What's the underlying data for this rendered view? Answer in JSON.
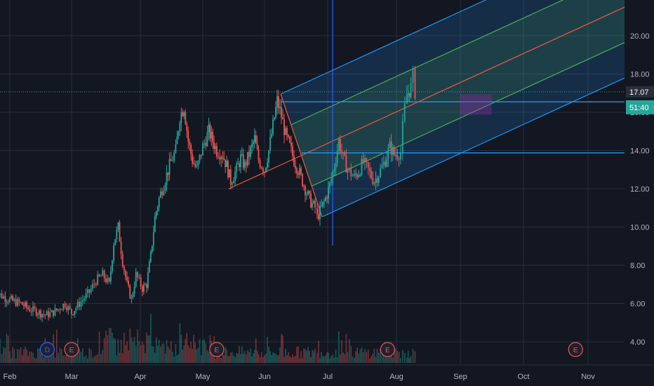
{
  "chart_data": {
    "type": "candlestick",
    "x_axis_labels": [
      "Feb",
      "Mar",
      "Apr",
      "May",
      "Jun",
      "Jul",
      "Aug",
      "Sep",
      "Oct",
      "Nov"
    ],
    "y_axis_labels": [
      "4.00",
      "6.00",
      "8.00",
      "10.00",
      "12.00",
      "14.00",
      "16.00",
      "18.00",
      "20.00"
    ],
    "ylim": [
      2.8,
      22.5
    ],
    "y_ticks": [
      4,
      6,
      8,
      10,
      12,
      14,
      16,
      18,
      20
    ],
    "grid": true,
    "price_series": [
      [
        "Jan 24",
        6.9
      ],
      [
        "Jan 27",
        6.5
      ],
      [
        "Jan 30",
        6.3
      ],
      [
        "Feb 3",
        6.1
      ],
      [
        "Feb 6",
        6.0
      ],
      [
        "Feb 10",
        5.7
      ],
      [
        "Feb 13",
        5.6
      ],
      [
        "Feb 17",
        5.4
      ],
      [
        "Feb 20",
        5.5
      ],
      [
        "Feb 23",
        5.7
      ],
      [
        "Feb 26",
        6.0
      ],
      [
        "Mar 1",
        5.5
      ],
      [
        "Mar 3",
        5.8
      ],
      [
        "Mar 6",
        6.2
      ],
      [
        "Mar 9",
        6.6
      ],
      [
        "Mar 12",
        7.2
      ],
      [
        "Mar 15",
        7.5
      ],
      [
        "Mar 18",
        7.0
      ],
      [
        "Mar 20",
        9.2
      ],
      [
        "Mar 22",
        10.0
      ],
      [
        "Mar 24",
        8.2
      ],
      [
        "Mar 26",
        7.0
      ],
      [
        "Mar 28",
        6.2
      ],
      [
        "Mar 30",
        7.5
      ],
      [
        "Apr 2",
        6.8
      ],
      [
        "Apr 4",
        7.0
      ],
      [
        "Apr 6",
        8.5
      ],
      [
        "Apr 8",
        10.5
      ],
      [
        "Apr 10",
        11.5
      ],
      [
        "Apr 13",
        12.5
      ],
      [
        "Apr 15",
        13.2
      ],
      [
        "Apr 18",
        14.0
      ],
      [
        "Apr 20",
        15.8
      ],
      [
        "Apr 22",
        16.3
      ],
      [
        "Apr 24",
        14.5
      ],
      [
        "Apr 26",
        13.5
      ],
      [
        "Apr 28",
        13.0
      ],
      [
        "May 1",
        14.2
      ],
      [
        "May 4",
        15.0
      ],
      [
        "May 6",
        14.5
      ],
      [
        "May 8",
        14.0
      ],
      [
        "May 11",
        13.8
      ],
      [
        "May 13",
        13.2
      ],
      [
        "May 15",
        12.4
      ],
      [
        "May 18",
        13.0
      ],
      [
        "May 20",
        13.6
      ],
      [
        "May 22",
        13.2
      ],
      [
        "May 25",
        14.0
      ],
      [
        "May 27",
        14.6
      ],
      [
        "May 29",
        13.5
      ],
      [
        "Jun 1",
        13.0
      ],
      [
        "Jun 3",
        14.0
      ],
      [
        "Jun 5",
        15.3
      ],
      [
        "Jun 7",
        16.6
      ],
      [
        "Jun 9",
        15.8
      ],
      [
        "Jun 11",
        14.8
      ],
      [
        "Jun 13",
        14.2
      ],
      [
        "Jun 15",
        13.5
      ],
      [
        "Jun 17",
        13.0
      ],
      [
        "Jun 19",
        12.4
      ],
      [
        "Jun 21",
        11.8
      ],
      [
        "Jun 23",
        11.3
      ],
      [
        "Jun 25",
        11.0
      ],
      [
        "Jun 26",
        10.5
      ],
      [
        "Jun 28",
        11.0
      ],
      [
        "Jun 30",
        11.5
      ],
      [
        "Jul 2",
        12.2
      ],
      [
        "Jul 4",
        13.2
      ],
      [
        "Jul 6",
        14.5
      ],
      [
        "Jul 8",
        13.6
      ],
      [
        "Jul 10",
        13.0
      ],
      [
        "Jul 13",
        12.6
      ],
      [
        "Jul 15",
        12.9
      ],
      [
        "Jul 17",
        13.4
      ],
      [
        "Jul 20",
        12.8
      ],
      [
        "Jul 22",
        12.4
      ],
      [
        "Jul 24",
        12.8
      ],
      [
        "Jul 27",
        13.5
      ],
      [
        "Jul 29",
        14.2
      ],
      [
        "Jul 31",
        13.8
      ],
      [
        "Aug 3",
        13.9
      ],
      [
        "Aug 4",
        15.2
      ],
      [
        "Aug 5",
        16.2
      ],
      [
        "Aug 6",
        16.9
      ],
      [
        "Aug 8",
        17.3
      ],
      [
        "Aug 9",
        17.9
      ],
      [
        "Aug 10",
        17.07
      ]
    ],
    "volume_markers": [
      {
        "label": "D",
        "date": "Feb 18"
      },
      {
        "label": "E",
        "date": "Mar 1"
      },
      {
        "label": "E",
        "date": "May 8"
      },
      {
        "label": "E",
        "date": "Jul 28"
      },
      {
        "label": "E",
        "date": "Oct 26"
      }
    ],
    "current_price": "17.07",
    "countdown": "51:40",
    "horizontal_lines": [
      16.55,
      13.88
    ],
    "colors": {
      "background": "#131722",
      "grid": "#2a2e39",
      "up": "#26a69a",
      "down": "#ef5350",
      "channel_outer": "#2196f3",
      "channel_inner": "#4caf50",
      "channel_median": "#f15a3b",
      "hline": "#2196f3",
      "highlight_box": "#9c27b0",
      "price_badge": "#2a2e39"
    }
  }
}
